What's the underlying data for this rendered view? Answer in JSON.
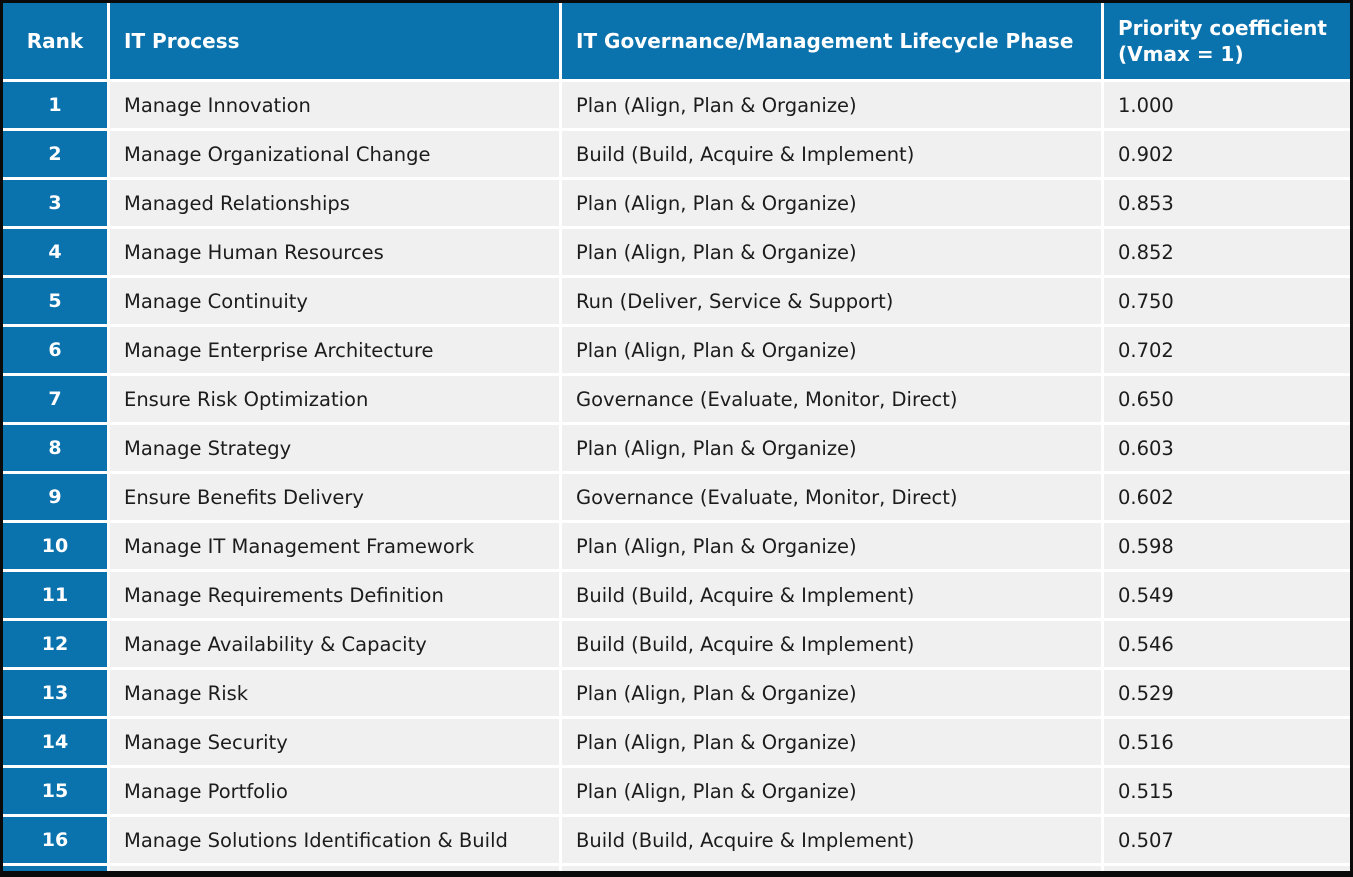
{
  "colors": {
    "accent_blue": "#0a72ad",
    "row_background": "#f0f0f0",
    "separator_white": "#ffffff",
    "outer_border_black": "#0a0a0a",
    "body_text": "#1c1c1c",
    "header_text": "#ffffff"
  },
  "table": {
    "columns": {
      "rank": "Rank",
      "process": "IT Process",
      "phase": "IT Governance/Management Lifecycle Phase",
      "priority": "Priority coefficient (Vmax = 1)"
    },
    "rows": [
      {
        "rank": "1",
        "process": "Manage Innovation",
        "phase": "Plan (Align, Plan & Organize)",
        "priority": "1.000"
      },
      {
        "rank": "2",
        "process": "Manage Organizational Change",
        "phase": "Build (Build, Acquire & Implement)",
        "priority": "0.902"
      },
      {
        "rank": "3",
        "process": "Managed Relationships",
        "phase": "Plan (Align, Plan & Organize)",
        "priority": "0.853"
      },
      {
        "rank": "4",
        "process": "Manage Human Resources",
        "phase": "Plan (Align, Plan & Organize)",
        "priority": "0.852"
      },
      {
        "rank": "5",
        "process": "Manage Continuity",
        "phase": "Run (Deliver, Service & Support)",
        "priority": "0.750"
      },
      {
        "rank": "6",
        "process": "Manage Enterprise Architecture",
        "phase": "Plan (Align, Plan & Organize)",
        "priority": "0.702"
      },
      {
        "rank": "7",
        "process": "Ensure Risk Optimization",
        "phase": "Governance (Evaluate, Monitor, Direct)",
        "priority": "0.650"
      },
      {
        "rank": "8",
        "process": "Manage Strategy",
        "phase": "Plan (Align, Plan & Organize)",
        "priority": "0.603"
      },
      {
        "rank": "9",
        "process": "Ensure Benefits Delivery",
        "phase": "Governance (Evaluate, Monitor, Direct)",
        "priority": "0.602"
      },
      {
        "rank": "10",
        "process": "Manage IT Management Framework",
        "phase": "Plan (Align, Plan & Organize)",
        "priority": "0.598"
      },
      {
        "rank": "11",
        "process": "Manage Requirements Definition",
        "phase": "Build (Build, Acquire & Implement)",
        "priority": "0.549"
      },
      {
        "rank": "12",
        "process": "Manage Availability & Capacity",
        "phase": "Build (Build, Acquire & Implement)",
        "priority": "0.546"
      },
      {
        "rank": "13",
        "process": "Manage Risk",
        "phase": "Plan (Align, Plan & Organize)",
        "priority": "0.529"
      },
      {
        "rank": "14",
        "process": "Manage Security",
        "phase": "Plan (Align, Plan & Organize)",
        "priority": "0.516"
      },
      {
        "rank": "15",
        "process": "Manage Portfolio",
        "phase": "Plan (Align, Plan & Organize)",
        "priority": "0.515"
      },
      {
        "rank": "16",
        "process": "Manage Solutions Identification & Build",
        "phase": "Build (Build, Acquire & Implement)",
        "priority": "0.507"
      }
    ]
  },
  "chart_data": {
    "type": "table",
    "title": "",
    "columns": [
      "Rank",
      "IT Process",
      "IT Governance/Management Lifecycle Phase",
      "Priority coefficient (Vmax = 1)"
    ],
    "categories": [
      "Manage Innovation",
      "Manage Organizational Change",
      "Managed Relationships",
      "Manage Human Resources",
      "Manage Continuity",
      "Manage Enterprise Architecture",
      "Ensure Risk Optimization",
      "Manage Strategy",
      "Ensure Benefits Delivery",
      "Manage IT Management Framework",
      "Manage Requirements Definition",
      "Manage Availability & Capacity",
      "Manage Risk",
      "Manage Security",
      "Manage Portfolio",
      "Manage Solutions Identification & Build"
    ],
    "series": [
      {
        "name": "Rank",
        "values": [
          1,
          2,
          3,
          4,
          5,
          6,
          7,
          8,
          9,
          10,
          11,
          12,
          13,
          14,
          15,
          16
        ]
      },
      {
        "name": "Priority coefficient (Vmax = 1)",
        "values": [
          1.0,
          0.902,
          0.853,
          0.852,
          0.75,
          0.702,
          0.65,
          0.603,
          0.602,
          0.598,
          0.549,
          0.546,
          0.529,
          0.516,
          0.515,
          0.507
        ]
      },
      {
        "name": "IT Governance/Management Lifecycle Phase",
        "values_text": [
          "Plan (Align, Plan & Organize)",
          "Build (Build, Acquire & Implement)",
          "Plan (Align, Plan & Organize)",
          "Plan (Align, Plan & Organize)",
          "Run (Deliver, Service & Support)",
          "Plan (Align, Plan & Organize)",
          "Governance (Evaluate, Monitor, Direct)",
          "Plan (Align, Plan & Organize)",
          "Governance (Evaluate, Monitor, Direct)",
          "Plan (Align, Plan & Organize)",
          "Build (Build, Acquire & Implement)",
          "Build (Build, Acquire & Implement)",
          "Plan (Align, Plan & Organize)",
          "Plan (Align, Plan & Organize)",
          "Plan (Align, Plan & Organize)",
          "Build (Build, Acquire & Implement)"
        ]
      }
    ]
  }
}
